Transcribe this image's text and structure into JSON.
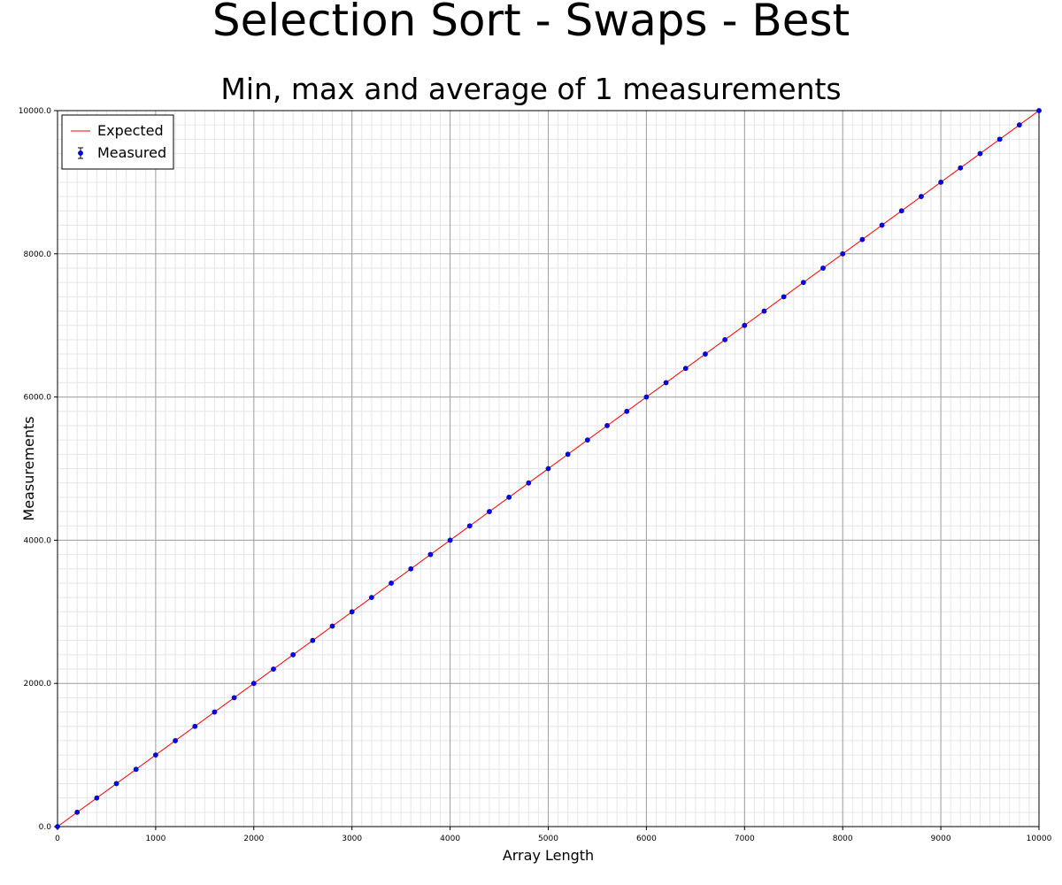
{
  "chart_data": {
    "type": "scatter",
    "title": "Selection Sort - Swaps - Best",
    "subtitle": "Min, max and average of 1 measurements",
    "xlabel": "Array Length",
    "ylabel": "Measurements",
    "xlim": [
      0,
      10000
    ],
    "ylim": [
      0,
      10000
    ],
    "x_ticks": [
      "0",
      "1000",
      "2000",
      "3000",
      "4000",
      "5000",
      "6000",
      "7000",
      "8000",
      "9000",
      "10000"
    ],
    "y_ticks": [
      "0.0",
      "2000.0",
      "4000.0",
      "6000.0",
      "8000.0",
      "10000.0"
    ],
    "grid": true,
    "legend_position": "top-left",
    "series": [
      {
        "name": "Expected",
        "kind": "line",
        "color": "#ff0000",
        "x": [
          0,
          10000
        ],
        "y": [
          0,
          10000
        ]
      },
      {
        "name": "Measured",
        "kind": "points-with-errorbars",
        "color": "#0000ff",
        "x": [
          0,
          200,
          400,
          600,
          800,
          1000,
          1200,
          1400,
          1600,
          1800,
          2000,
          2200,
          2400,
          2600,
          2800,
          3000,
          3200,
          3400,
          3600,
          3800,
          4000,
          4200,
          4400,
          4600,
          4800,
          5000,
          5200,
          5400,
          5600,
          5800,
          6000,
          6200,
          6400,
          6600,
          6800,
          7000,
          7200,
          7400,
          7600,
          7800,
          8000,
          8200,
          8400,
          8600,
          8800,
          9000,
          9200,
          9400,
          9600,
          9800,
          10000
        ],
        "y": [
          0,
          200,
          400,
          600,
          800,
          1000,
          1200,
          1400,
          1600,
          1800,
          2000,
          2200,
          2400,
          2600,
          2800,
          3000,
          3200,
          3400,
          3600,
          3800,
          4000,
          4200,
          4400,
          4600,
          4800,
          5000,
          5200,
          5400,
          5600,
          5800,
          6000,
          6200,
          6400,
          6600,
          6800,
          7000,
          7200,
          7400,
          7600,
          7800,
          8000,
          8200,
          8400,
          8600,
          8800,
          9000,
          9200,
          9400,
          9600,
          9800,
          10000
        ]
      }
    ]
  }
}
